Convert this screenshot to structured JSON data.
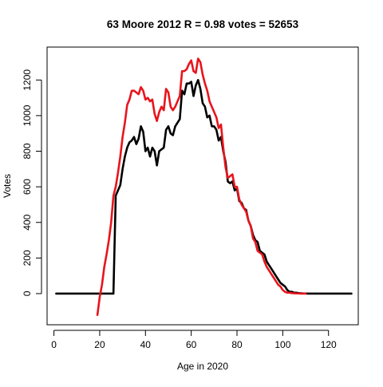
{
  "chart_data": {
    "type": "line",
    "title": "63 Moore 2012 R = 0.98 votes = 52653",
    "xlabel": "Age in 2020",
    "ylabel": "Votes",
    "xlim": [
      -3,
      133
    ],
    "ylim": [
      -175,
      1385
    ],
    "xticks": [
      0,
      20,
      40,
      60,
      80,
      100,
      120
    ],
    "yticks": [
      0,
      200,
      400,
      600,
      800,
      1000,
      1200
    ],
    "grid": false,
    "legend": "none",
    "series": [
      {
        "color": "#000000",
        "x": [
          1,
          2,
          3,
          4,
          5,
          6,
          7,
          8,
          9,
          10,
          11,
          12,
          13,
          14,
          15,
          16,
          17,
          18,
          19,
          20,
          21,
          22,
          23,
          24,
          25,
          26,
          27,
          28,
          29,
          30,
          31,
          32,
          33,
          34,
          35,
          36,
          37,
          38,
          39,
          40,
          41,
          42,
          43,
          44,
          45,
          46,
          47,
          48,
          49,
          50,
          51,
          52,
          53,
          54,
          55,
          56,
          57,
          58,
          59,
          60,
          61,
          62,
          63,
          64,
          65,
          66,
          67,
          68,
          69,
          70,
          71,
          72,
          73,
          74,
          75,
          76,
          77,
          78,
          79,
          80,
          81,
          82,
          83,
          84,
          85,
          86,
          87,
          88,
          89,
          90,
          91,
          92,
          93,
          94,
          95,
          96,
          97,
          98,
          99,
          100,
          101,
          102,
          103,
          104,
          105,
          106,
          107,
          108,
          109,
          110,
          111,
          112,
          113,
          114,
          115,
          116,
          117,
          118,
          119,
          120,
          121,
          122,
          123,
          124,
          125,
          126,
          127,
          128,
          129,
          130
        ],
        "y": [
          0,
          0,
          0,
          0,
          0,
          0,
          0,
          0,
          0,
          0,
          0,
          0,
          0,
          0,
          0,
          0,
          0,
          0,
          0,
          0,
          0,
          0,
          0,
          0,
          0,
          0,
          550,
          580,
          610,
          700,
          770,
          820,
          850,
          860,
          880,
          840,
          870,
          940,
          910,
          800,
          820,
          770,
          820,
          800,
          720,
          800,
          810,
          820,
          920,
          940,
          900,
          890,
          940,
          960,
          980,
          1140,
          1120,
          1180,
          1180,
          1190,
          1110,
          1170,
          1200,
          1150,
          1070,
          1050,
          990,
          1000,
          940,
          940,
          920,
          860,
          880,
          800,
          740,
          630,
          620,
          630,
          580,
          590,
          520,
          510,
          480,
          470,
          410,
          380,
          330,
          300,
          290,
          240,
          230,
          220,
          180,
          160,
          140,
          120,
          100,
          80,
          60,
          50,
          40,
          20,
          10,
          10,
          5,
          5,
          3,
          2,
          1,
          1,
          0,
          0,
          0,
          0,
          0,
          0,
          0,
          0,
          0,
          0,
          0,
          0,
          0,
          0,
          0,
          0,
          0,
          0,
          0,
          0
        ]
      },
      {
        "color": "#e8141c",
        "x": [
          19,
          20,
          21,
          22,
          23,
          24,
          25,
          26,
          27,
          28,
          29,
          30,
          31,
          32,
          33,
          34,
          35,
          36,
          37,
          38,
          39,
          40,
          41,
          42,
          43,
          44,
          45,
          46,
          47,
          48,
          49,
          50,
          51,
          52,
          53,
          54,
          55,
          56,
          57,
          58,
          59,
          60,
          61,
          62,
          63,
          64,
          65,
          66,
          67,
          68,
          69,
          70,
          71,
          72,
          73,
          74,
          75,
          76,
          77,
          78,
          79,
          80,
          81,
          82,
          83,
          84,
          85,
          86,
          87,
          88,
          89,
          90,
          91,
          92,
          93,
          94,
          95,
          96,
          97,
          98,
          99,
          100,
          101,
          102,
          103,
          104,
          105,
          106,
          107,
          108,
          109,
          110
        ],
        "y": [
          -120,
          -20,
          50,
          150,
          220,
          300,
          400,
          550,
          600,
          680,
          770,
          880,
          960,
          1060,
          1090,
          1140,
          1140,
          1130,
          1120,
          1160,
          1140,
          1090,
          1100,
          1080,
          1090,
          1010,
          970,
          1020,
          1050,
          1030,
          1150,
          1130,
          1050,
          1030,
          1050,
          1080,
          1110,
          1250,
          1250,
          1260,
          1290,
          1310,
          1250,
          1240,
          1320,
          1300,
          1230,
          1180,
          1140,
          1080,
          1050,
          1020,
          990,
          930,
          950,
          820,
          710,
          650,
          660,
          670,
          600,
          600,
          530,
          500,
          480,
          460,
          410,
          380,
          310,
          290,
          240,
          230,
          220,
          180,
          150,
          130,
          110,
          90,
          70,
          50,
          40,
          20,
          10,
          5,
          5,
          3,
          2,
          1,
          1,
          0,
          0,
          0
        ]
      }
    ]
  }
}
